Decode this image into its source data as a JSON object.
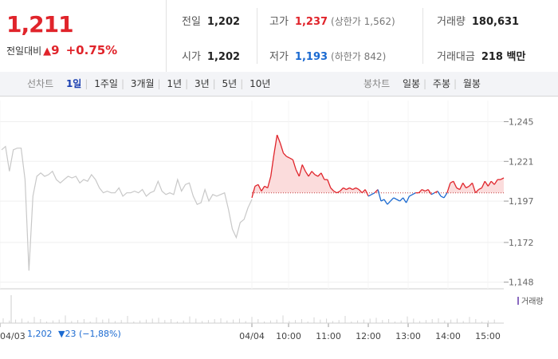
{
  "quote": {
    "price": "1,211",
    "change_label": "전일대비",
    "change_arrow": "▲",
    "change_value": "9",
    "change_rate": "+0.75%"
  },
  "stats": {
    "prev_close": {
      "label": "전일",
      "value": "1,202"
    },
    "open": {
      "label": "시가",
      "value": "1,202"
    },
    "high": {
      "label": "고가",
      "value": "1,237",
      "limit_text": "(상한가 1,562)"
    },
    "low": {
      "label": "저가",
      "value": "1,193",
      "limit_text": "(하한가 842)"
    },
    "volume": {
      "label": "거래량",
      "value": "180,631"
    },
    "amount": {
      "label": "거래대금",
      "value": "218 백만"
    }
  },
  "toolbar": {
    "line_label": "선차트",
    "periods": [
      "1일",
      "1주일",
      "3개월",
      "1년",
      "3년",
      "5년",
      "10년"
    ],
    "active_period": "1일",
    "candle_label": "봉차트",
    "candles": [
      "일봉",
      "주봉",
      "월봉"
    ]
  },
  "colors": {
    "up": "#e0242b",
    "down": "#1b6ad1",
    "up_fill": "#fbdcdc",
    "prev_day": "#c8c8c8",
    "baseline": "#c04040"
  },
  "footer": {
    "prev_date": "04/03",
    "prev_close": "1,202",
    "prev_change": "▼23",
    "prev_rate": "(−1,88%)"
  },
  "chart_data": {
    "type": "line",
    "baseline": 1202,
    "ylim": [
      1144,
      1252
    ],
    "y_ticks": [
      "1,245",
      "1,221",
      "1,197",
      "1,172",
      "1,148"
    ],
    "y_tick_values": [
      1245,
      1221,
      1197,
      1172,
      1148
    ],
    "x_ticks": [
      "04/03",
      "04/04",
      "10:00",
      "11:00",
      "12:00",
      "13:00",
      "14:00",
      "15:00"
    ],
    "volume_legend": "거래량",
    "series": [
      {
        "values": [
          1228,
          1230,
          1215,
          1228,
          1229,
          1229,
          1210,
          1155,
          1200,
          1212,
          1214,
          1212,
          1213,
          1215,
          1210,
          1208,
          1210,
          1212,
          1211,
          1212,
          1208,
          1210,
          1209,
          1213,
          1210,
          1205,
          1202,
          1203,
          1202,
          1202,
          1205,
          1200,
          1202,
          1202,
          1203,
          1202,
          1204,
          1200,
          1202,
          1203,
          1209,
          1203,
          1201,
          1202,
          1201,
          1210,
          1203,
          1207,
          1208,
          1200,
          1195,
          1196,
          1204,
          1197,
          1201,
          1200,
          1201,
          1202,
          1192,
          1180,
          1175,
          1184,
          1186,
          1193,
          1198
        ]
      },
      {
        "values": [
          1199,
          1206,
          1207,
          1203,
          1206,
          1205,
          1212,
          1225,
          1237,
          1232,
          1226,
          1224,
          1223,
          1222,
          1216,
          1212,
          1219,
          1215,
          1212,
          1215,
          1213,
          1212,
          1214,
          1210,
          1210,
          1205,
          1203,
          1202,
          1203,
          1205,
          1204,
          1205,
          1204,
          1205,
          1204,
          1202,
          1204,
          1200,
          1201,
          1202,
          1204,
          1197,
          1198,
          1195,
          1197,
          1199,
          1198,
          1197,
          1199,
          1196,
          1200,
          1201,
          1202,
          1202,
          1204,
          1203,
          1204,
          1201,
          1202,
          1203,
          1200,
          1199,
          1202,
          1208,
          1209,
          1205,
          1204,
          1208,
          1205,
          1206,
          1208,
          1202,
          1204,
          1205,
          1209,
          1206,
          1209,
          1207,
          1210,
          1210,
          1211
        ]
      }
    ]
  }
}
